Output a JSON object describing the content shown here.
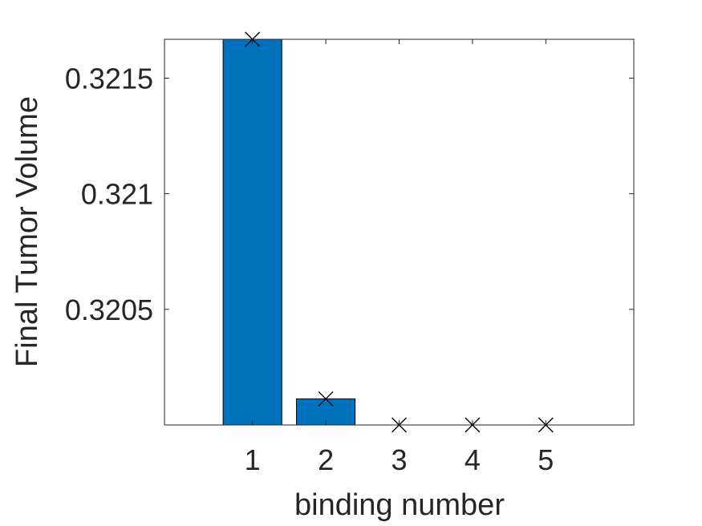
{
  "chart_data": {
    "type": "bar",
    "title": "",
    "xlabel": "binding number",
    "ylabel": "Final Tumor Volume",
    "categories": [
      "1",
      "2",
      "3",
      "4",
      "5"
    ],
    "series": [
      {
        "values": [
          0.321668,
          0.320113,
          0.32,
          0.32,
          0.32
        ]
      }
    ],
    "markers": {
      "symbol": "x",
      "values": [
        0.321668,
        0.320113,
        0.32,
        0.32,
        0.32
      ]
    },
    "xlim": [
      -0.2,
      6.2
    ],
    "ylim": [
      0.32,
      0.321668
    ],
    "yticks": [
      0.3205,
      0.321,
      0.3215
    ],
    "ytick_labels": [
      "0.3205",
      "0.321",
      "0.3215"
    ],
    "grid": false,
    "colors": {
      "bar": "#0072BD",
      "marker": "#000000",
      "axis": "#262626"
    }
  }
}
